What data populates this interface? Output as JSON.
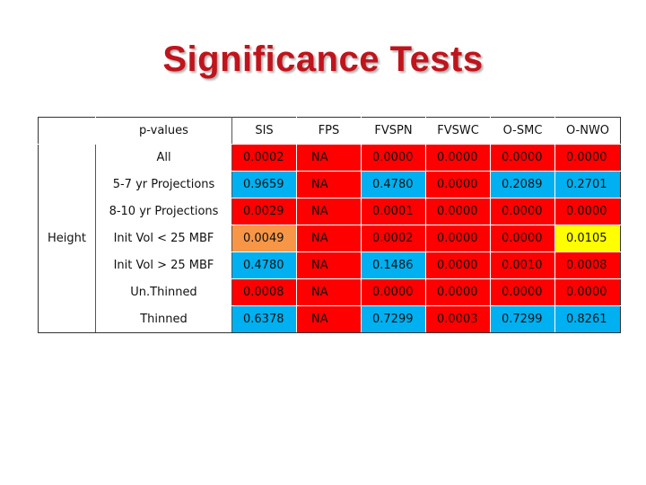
{
  "title": "Significance Tests",
  "table": {
    "corner_label": "p-values",
    "group_label": "Height",
    "columns": [
      "SIS",
      "FPS",
      "FVSPN",
      "FVSWC",
      "O-SMC",
      "O-NWO"
    ],
    "rows": [
      {
        "label": "All",
        "cells": [
          {
            "value": "0.0002",
            "color": "red"
          },
          {
            "value": "NA",
            "color": "red"
          },
          {
            "value": "0.0000",
            "color": "red"
          },
          {
            "value": "0.0000",
            "color": "red"
          },
          {
            "value": "0.0000",
            "color": "red"
          },
          {
            "value": "0.0000",
            "color": "red"
          }
        ]
      },
      {
        "label": "5-7 yr Projections",
        "cells": [
          {
            "value": "0.9659",
            "color": "blue"
          },
          {
            "value": "NA",
            "color": "red"
          },
          {
            "value": "0.4780",
            "color": "blue"
          },
          {
            "value": "0.0000",
            "color": "red"
          },
          {
            "value": "0.2089",
            "color": "blue"
          },
          {
            "value": "0.2701",
            "color": "blue"
          }
        ]
      },
      {
        "label": "8-10 yr Projections",
        "cells": [
          {
            "value": "0.0029",
            "color": "red"
          },
          {
            "value": "NA",
            "color": "red"
          },
          {
            "value": "0.0001",
            "color": "red"
          },
          {
            "value": "0.0000",
            "color": "red"
          },
          {
            "value": "0.0000",
            "color": "red"
          },
          {
            "value": "0.0000",
            "color": "red"
          }
        ]
      },
      {
        "label": "Init Vol < 25 MBF",
        "cells": [
          {
            "value": "0.0049",
            "color": "orange"
          },
          {
            "value": "NA",
            "color": "red"
          },
          {
            "value": "0.0002",
            "color": "red"
          },
          {
            "value": "0.0000",
            "color": "red"
          },
          {
            "value": "0.0000",
            "color": "red"
          },
          {
            "value": "0.0105",
            "color": "yellow"
          }
        ]
      },
      {
        "label": "Init Vol > 25 MBF",
        "cells": [
          {
            "value": "0.4780",
            "color": "blue"
          },
          {
            "value": "NA",
            "color": "red"
          },
          {
            "value": "0.1486",
            "color": "blue"
          },
          {
            "value": "0.0000",
            "color": "red"
          },
          {
            "value": "0.0010",
            "color": "red"
          },
          {
            "value": "0.0008",
            "color": "red"
          }
        ]
      },
      {
        "label": "Un.Thinned",
        "cells": [
          {
            "value": "0.0008",
            "color": "red"
          },
          {
            "value": "NA",
            "color": "red"
          },
          {
            "value": "0.0000",
            "color": "red"
          },
          {
            "value": "0.0000",
            "color": "red"
          },
          {
            "value": "0.0000",
            "color": "red"
          },
          {
            "value": "0.0000",
            "color": "red"
          }
        ]
      },
      {
        "label": "Thinned",
        "cells": [
          {
            "value": "0.6378",
            "color": "blue"
          },
          {
            "value": "NA",
            "color": "red"
          },
          {
            "value": "0.7299",
            "color": "blue"
          },
          {
            "value": "0.0003",
            "color": "red"
          },
          {
            "value": "0.7299",
            "color": "blue"
          },
          {
            "value": "0.8261",
            "color": "blue"
          }
        ]
      }
    ]
  }
}
